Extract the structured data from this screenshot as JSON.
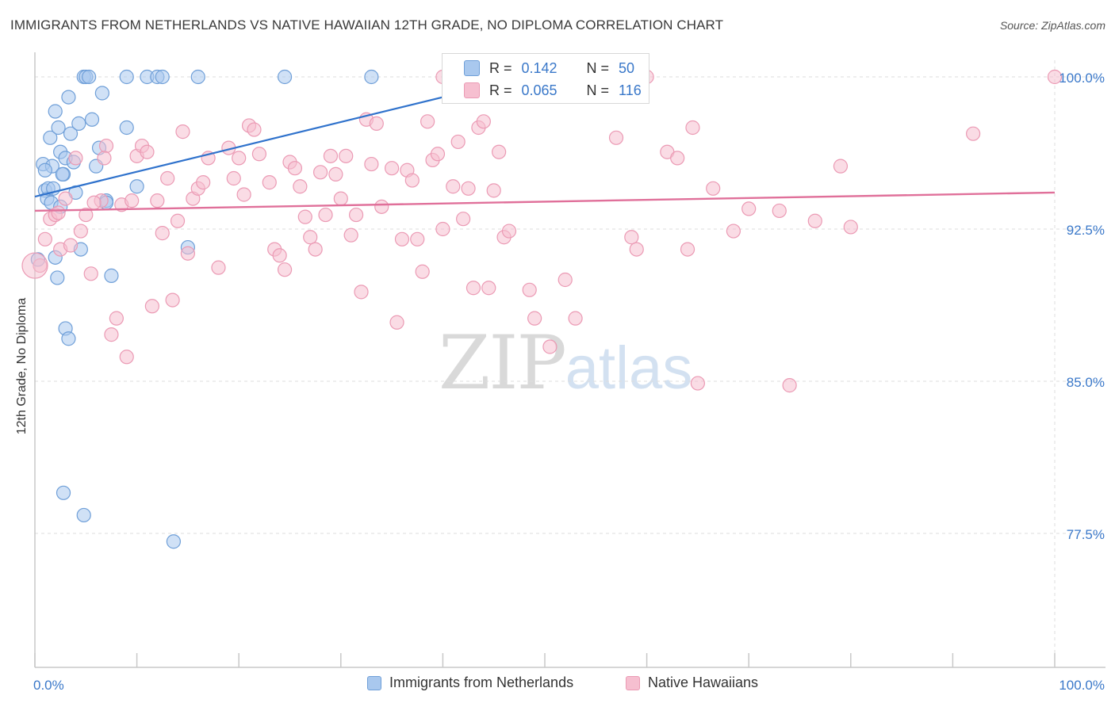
{
  "title": "IMMIGRANTS FROM NETHERLANDS VS NATIVE HAWAIIAN 12TH GRADE, NO DIPLOMA CORRELATION CHART",
  "source": "Source: ZipAtlas.com",
  "watermark": {
    "zip": "ZIP",
    "atlas": "atlas"
  },
  "legend_top": {
    "r_label": "R =",
    "n_label": "N =",
    "rows": [
      {
        "r": "0.142",
        "n": "50"
      },
      {
        "r": "0.065",
        "n": "116"
      }
    ]
  },
  "legend_bottom": [
    {
      "label": "Immigrants from Netherlands"
    },
    {
      "label": "Native Hawaiians"
    }
  ],
  "colors": {
    "blue_fill": "#a9c8ee",
    "blue_stroke": "#6f9fd8",
    "blue_line": "#2f72cc",
    "pink_fill": "#f6bfd0",
    "pink_stroke": "#eb9ab4",
    "pink_line": "#e0709a",
    "tick_label": "#3a78c9",
    "grid": "#dddddd"
  },
  "chart_data": {
    "type": "scatter",
    "title": "IMMIGRANTS FROM NETHERLANDS VS NATIVE HAWAIIAN 12TH GRADE, NO DIPLOMA CORRELATION CHART",
    "xlabel": "",
    "ylabel": "12th Grade, No Diploma",
    "xlim": [
      0,
      100
    ],
    "ylim": [
      71.0,
      101.5
    ],
    "x_tick_labels": [
      "0.0%",
      "100.0%"
    ],
    "y_ticks": [
      {
        "value": 100.0,
        "label": "100.0%"
      },
      {
        "value": 92.5,
        "label": "92.5%"
      },
      {
        "value": 85.0,
        "label": "85.0%"
      },
      {
        "value": 77.5,
        "label": "77.5%"
      }
    ],
    "grid": true,
    "legend_position": "top-center",
    "series": [
      {
        "name": "Immigrants from Netherlands",
        "color": "#a9c8ee",
        "trend": {
          "x": [
            0.0,
            40.0
          ],
          "y": [
            94.1,
            99.0
          ]
        },
        "points": [
          [
            0.8,
            95.7
          ],
          [
            1.0,
            94.4
          ],
          [
            1.2,
            94.0
          ],
          [
            1.5,
            97.0
          ],
          [
            1.7,
            95.6
          ],
          [
            2.0,
            98.3
          ],
          [
            2.3,
            97.5
          ],
          [
            2.5,
            96.3
          ],
          [
            2.8,
            95.2
          ],
          [
            3.0,
            96.0
          ],
          [
            3.3,
            99.0
          ],
          [
            3.5,
            97.2
          ],
          [
            3.8,
            95.8
          ],
          [
            4.0,
            94.3
          ],
          [
            4.3,
            97.7
          ],
          [
            4.8,
            100.0
          ],
          [
            5.0,
            100.0
          ],
          [
            5.3,
            100.0
          ],
          [
            5.6,
            97.9
          ],
          [
            6.0,
            95.6
          ],
          [
            6.3,
            96.5
          ],
          [
            6.6,
            99.2
          ],
          [
            7.0,
            93.9
          ],
          [
            7.5,
            90.2
          ],
          [
            9.0,
            100.0
          ],
          [
            10.0,
            94.6
          ],
          [
            11.0,
            100.0
          ],
          [
            12.0,
            100.0
          ],
          [
            12.5,
            100.0
          ],
          [
            16.0,
            100.0
          ],
          [
            1.0,
            95.4
          ],
          [
            1.3,
            94.5
          ],
          [
            1.6,
            93.8
          ],
          [
            1.8,
            94.5
          ],
          [
            2.0,
            91.1
          ],
          [
            2.2,
            90.1
          ],
          [
            2.5,
            93.6
          ],
          [
            2.7,
            95.2
          ],
          [
            3.0,
            87.6
          ],
          [
            3.3,
            87.1
          ],
          [
            4.5,
            91.5
          ],
          [
            7.0,
            93.8
          ],
          [
            9.0,
            97.5
          ],
          [
            15.0,
            91.6
          ],
          [
            2.8,
            79.5
          ],
          [
            4.8,
            78.4
          ],
          [
            13.6,
            77.1
          ],
          [
            24.5,
            100.0
          ],
          [
            33.0,
            100.0
          ],
          [
            0.3,
            91.0
          ]
        ]
      },
      {
        "name": "Native Hawaiians",
        "color": "#f6bfd0",
        "trend": {
          "x": [
            0.0,
            100.0
          ],
          "y": [
            93.4,
            94.3
          ]
        },
        "points": [
          [
            1.0,
            92.0
          ],
          [
            1.5,
            93.0
          ],
          [
            2.0,
            93.2
          ],
          [
            2.5,
            91.5
          ],
          [
            3.0,
            94.0
          ],
          [
            3.5,
            91.7
          ],
          [
            4.0,
            96.0
          ],
          [
            4.5,
            92.4
          ],
          [
            5.0,
            93.2
          ],
          [
            5.5,
            90.3
          ],
          [
            6.5,
            93.9
          ],
          [
            7.0,
            96.6
          ],
          [
            7.5,
            87.3
          ],
          [
            8.0,
            88.1
          ],
          [
            8.5,
            93.7
          ],
          [
            9.0,
            86.2
          ],
          [
            9.5,
            93.9
          ],
          [
            10.0,
            96.1
          ],
          [
            10.5,
            96.6
          ],
          [
            11.0,
            96.3
          ],
          [
            11.5,
            88.7
          ],
          [
            12.0,
            93.9
          ],
          [
            12.5,
            92.3
          ],
          [
            13.0,
            95.0
          ],
          [
            13.5,
            89.0
          ],
          [
            14.0,
            92.9
          ],
          [
            14.5,
            97.3
          ],
          [
            15.0,
            91.3
          ],
          [
            15.5,
            94.0
          ],
          [
            16.0,
            94.5
          ],
          [
            16.5,
            94.8
          ],
          [
            17.0,
            96.0
          ],
          [
            18.0,
            90.6
          ],
          [
            19.0,
            96.5
          ],
          [
            19.5,
            95.0
          ],
          [
            20.0,
            96.0
          ],
          [
            20.5,
            94.2
          ],
          [
            21.0,
            97.6
          ],
          [
            21.5,
            97.4
          ],
          [
            22.0,
            96.2
          ],
          [
            23.0,
            94.8
          ],
          [
            23.5,
            91.5
          ],
          [
            24.0,
            91.2
          ],
          [
            24.5,
            90.5
          ],
          [
            25.0,
            95.8
          ],
          [
            25.5,
            95.5
          ],
          [
            26.0,
            94.6
          ],
          [
            26.5,
            93.1
          ],
          [
            27.0,
            92.1
          ],
          [
            27.5,
            91.5
          ],
          [
            28.0,
            95.3
          ],
          [
            28.5,
            93.2
          ],
          [
            29.0,
            96.1
          ],
          [
            29.5,
            95.2
          ],
          [
            30.0,
            94.0
          ],
          [
            30.5,
            96.1
          ],
          [
            31.0,
            92.2
          ],
          [
            31.5,
            93.2
          ],
          [
            32.0,
            89.4
          ],
          [
            32.5,
            97.9
          ],
          [
            33.0,
            95.7
          ],
          [
            33.5,
            97.7
          ],
          [
            34.0,
            93.6
          ],
          [
            35.0,
            95.5
          ],
          [
            35.5,
            87.9
          ],
          [
            36.0,
            92.0
          ],
          [
            36.5,
            95.4
          ],
          [
            37.0,
            94.9
          ],
          [
            37.5,
            92.0
          ],
          [
            38.0,
            90.4
          ],
          [
            38.5,
            97.8
          ],
          [
            39.0,
            95.9
          ],
          [
            39.5,
            96.2
          ],
          [
            40.0,
            92.5
          ],
          [
            41.0,
            94.6
          ],
          [
            41.5,
            96.8
          ],
          [
            42.0,
            93.0
          ],
          [
            42.5,
            94.5
          ],
          [
            43.0,
            89.6
          ],
          [
            43.5,
            97.5
          ],
          [
            44.0,
            97.8
          ],
          [
            44.5,
            89.6
          ],
          [
            45.0,
            94.4
          ],
          [
            45.5,
            96.3
          ],
          [
            46.0,
            92.1
          ],
          [
            46.5,
            92.4
          ],
          [
            48.5,
            89.5
          ],
          [
            49.0,
            88.1
          ],
          [
            50.5,
            86.7
          ],
          [
            52.0,
            90.0
          ],
          [
            53.0,
            88.1
          ],
          [
            57.0,
            97.0
          ],
          [
            58.5,
            92.1
          ],
          [
            59.0,
            91.5
          ],
          [
            60.0,
            100.0
          ],
          [
            62.0,
            96.3
          ],
          [
            63.0,
            96.0
          ],
          [
            64.0,
            91.5
          ],
          [
            64.5,
            97.5
          ],
          [
            65.0,
            84.9
          ],
          [
            66.5,
            94.5
          ],
          [
            68.5,
            92.4
          ],
          [
            70.0,
            93.5
          ],
          [
            73.0,
            93.4
          ],
          [
            74.0,
            84.8
          ],
          [
            76.5,
            92.9
          ],
          [
            79.0,
            95.6
          ],
          [
            80.0,
            92.6
          ],
          [
            92.0,
            97.2
          ],
          [
            100.0,
            100.0
          ],
          [
            40.0,
            100.0
          ],
          [
            59.5,
            100.0
          ],
          [
            0.5,
            90.7
          ],
          [
            2.3,
            93.3
          ],
          [
            5.8,
            93.8
          ],
          [
            6.8,
            96.0
          ]
        ]
      }
    ]
  }
}
